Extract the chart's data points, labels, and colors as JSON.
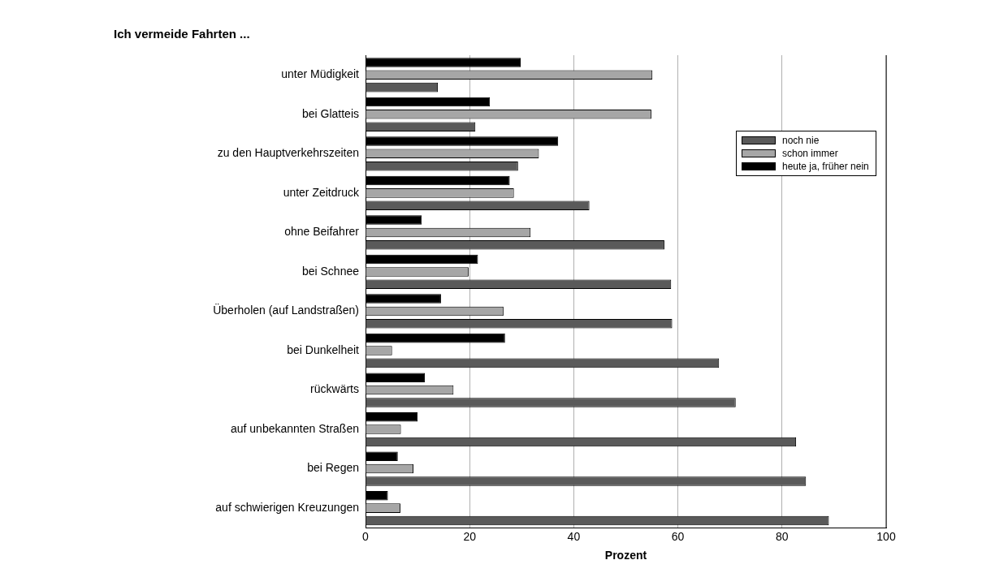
{
  "chart_data": {
    "type": "bar",
    "orientation": "horizontal",
    "title": "Ich vermeide Fahrten ...",
    "xlabel": "Prozent",
    "categories": [
      "unter Müdigkeit",
      "bei Glatteis",
      "zu den Hauptverkehrszeiten",
      "unter Zeitdruck",
      "ohne Beifahrer",
      "bei Schnee",
      "Überholen (auf Landstraßen)",
      "bei Dunkelheit",
      "rückwärts",
      "auf unbekannten Straßen",
      "bei Regen",
      "auf schwierigen Kreuzungen"
    ],
    "series": [
      {
        "name": "noch nie",
        "color": "#5a5a5a",
        "values": [
          13.9,
          21.1,
          29.3,
          43.0,
          57.4,
          58.7,
          58.9,
          67.9,
          71.1,
          82.7,
          84.6,
          89.0
        ]
      },
      {
        "name": "schon immer",
        "color": "#a6a6a6",
        "values": [
          55.1,
          54.9,
          33.3,
          28.5,
          31.7,
          19.8,
          26.5,
          5.1,
          16.9,
          6.8,
          9.2,
          6.7
        ]
      },
      {
        "name": "heute ja, früher nein",
        "color": "#000000",
        "values": [
          29.8,
          23.9,
          37.0,
          27.7,
          10.8,
          21.6,
          14.5,
          26.8,
          11.4,
          10.0,
          6.2,
          4.3
        ]
      }
    ],
    "xlim": [
      0,
      100
    ],
    "xticks": [
      0,
      20,
      40,
      60,
      80,
      100
    ],
    "grid": "x",
    "legend": "top right"
  }
}
